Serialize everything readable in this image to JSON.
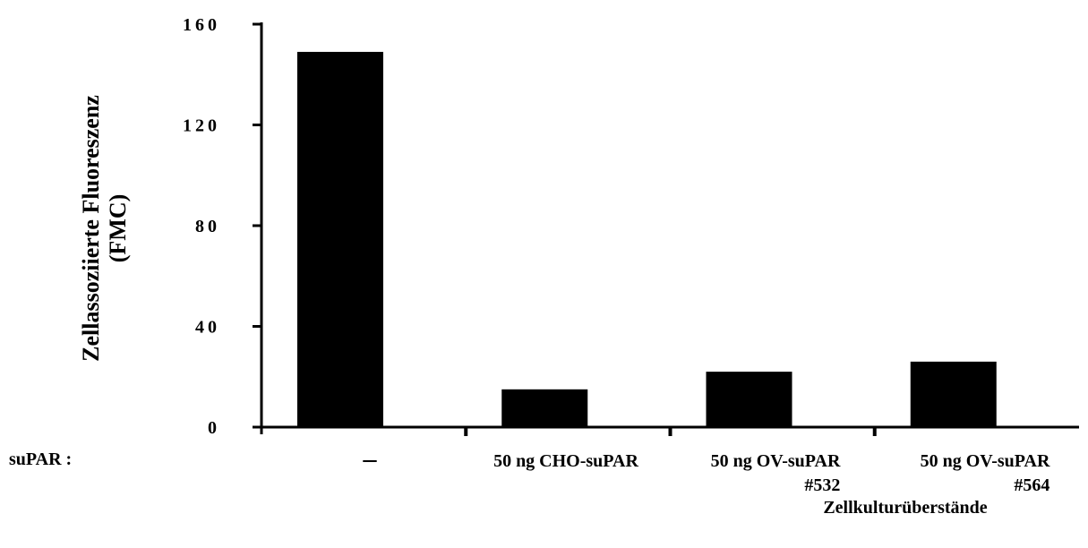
{
  "chart_data": {
    "type": "bar",
    "ylabel": [
      "Zellassoziierte Fluoreszenz",
      "(FMC)"
    ],
    "ylim": [
      0,
      160
    ],
    "yticks": [
      "0",
      "40",
      "80",
      "120",
      "160"
    ],
    "ytick_values": [
      0,
      40,
      80,
      120,
      160
    ],
    "row_label": "suPAR :",
    "categories": [
      "–",
      "50 ng CHO-suPAR",
      "50 ng OV-suPAR\n#532",
      "50 ng  OV-suPAR\n#564"
    ],
    "category_lines": [
      [
        "–"
      ],
      [
        "50 ng CHO-suPAR"
      ],
      [
        "50 ng OV-suPAR",
        "#532"
      ],
      [
        "50 ng  OV-suPAR",
        "#564"
      ]
    ],
    "values": [
      149,
      15,
      22,
      26
    ],
    "group_label": "Zellkulturüberstände",
    "bar_color": "#000000",
    "grid": false,
    "legend": "none"
  }
}
